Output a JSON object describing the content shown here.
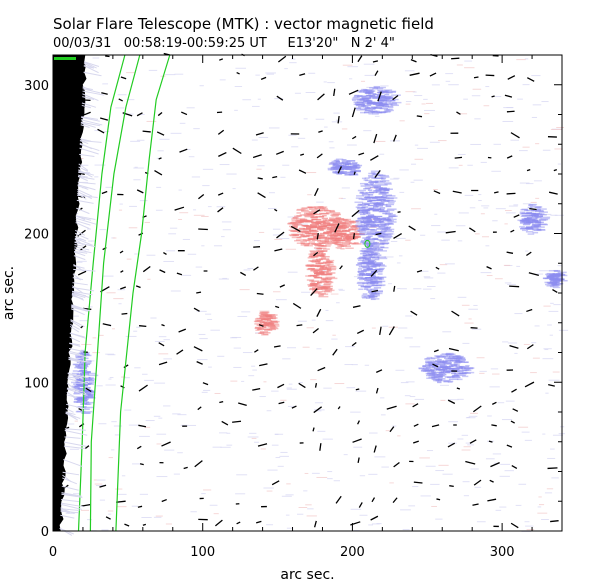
{
  "header": {
    "title": "Solar Flare Telescope (MTK) : vector magnetic field",
    "subtitle": "00/03/31   00:58:19-00:59:25 UT     E13'20\"   N 2' 4\""
  },
  "chart_data": {
    "type": "vector-magnetogram",
    "xlabel": "arc sec.",
    "ylabel": "arc sec.",
    "xlim": [
      0,
      340
    ],
    "ylim": [
      0,
      320
    ],
    "xticks": [
      0,
      100,
      200,
      300
    ],
    "yticks": [
      0,
      100,
      200,
      300
    ],
    "colors": {
      "positive_polarity": "#f08080",
      "negative_polarity": "#8c8cf0",
      "contour": "#22cc22",
      "limb": "#000000",
      "vectors": "#000000"
    },
    "positive_regions": [
      {
        "x": 175,
        "y": 205,
        "rx": 18,
        "ry": 14
      },
      {
        "x": 195,
        "y": 200,
        "rx": 10,
        "ry": 10
      },
      {
        "x": 178,
        "y": 175,
        "rx": 8,
        "ry": 18
      },
      {
        "x": 142,
        "y": 140,
        "rx": 6,
        "ry": 8
      }
    ],
    "negative_regions": [
      {
        "x": 215,
        "y": 215,
        "rx": 12,
        "ry": 28
      },
      {
        "x": 212,
        "y": 175,
        "rx": 8,
        "ry": 20
      },
      {
        "x": 215,
        "y": 290,
        "rx": 14,
        "ry": 10
      },
      {
        "x": 195,
        "y": 245,
        "rx": 10,
        "ry": 6
      },
      {
        "x": 262,
        "y": 110,
        "rx": 16,
        "ry": 10
      },
      {
        "x": 320,
        "y": 210,
        "rx": 8,
        "ry": 10
      },
      {
        "x": 335,
        "y": 170,
        "rx": 6,
        "ry": 6
      },
      {
        "x": 20,
        "y": 100,
        "rx": 6,
        "ry": 22
      }
    ],
    "contours": [
      [
        [
          17,
          0
        ],
        [
          19,
          60
        ],
        [
          22,
          120
        ],
        [
          27,
          180
        ],
        [
          33,
          240
        ],
        [
          40,
          285
        ],
        [
          48,
          320
        ]
      ],
      [
        [
          25,
          0
        ],
        [
          27,
          60
        ],
        [
          30,
          120
        ],
        [
          35,
          180
        ],
        [
          42,
          240
        ],
        [
          50,
          285
        ],
        [
          58,
          320
        ]
      ],
      [
        [
          42,
          0
        ],
        [
          45,
          80
        ],
        [
          52,
          160
        ],
        [
          58,
          200
        ],
        [
          65,
          250
        ],
        [
          70,
          290
        ],
        [
          78,
          320
        ]
      ]
    ],
    "vector_field_note": "short transverse field dashes scattered across disk"
  }
}
